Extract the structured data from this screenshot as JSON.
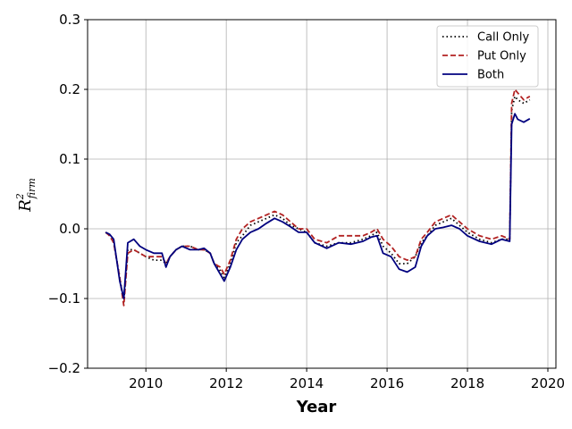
{
  "chart_data": {
    "type": "line",
    "xlabel": "Year",
    "ylabel": {
      "base": "R",
      "sup": "2",
      "sub": "firm"
    },
    "xlim": [
      2008.55,
      2020.2
    ],
    "ylim": [
      -0.2,
      0.3
    ],
    "xticks": [
      2010,
      2012,
      2014,
      2016,
      2018,
      2020
    ],
    "yticks": [
      -0.2,
      -0.1,
      0.0,
      0.1,
      0.2,
      0.3
    ],
    "ytick_labels": [
      "−0.2",
      "−0.1",
      "0.0",
      "0.1",
      "0.2",
      "0.3"
    ],
    "grid": true,
    "legend_position": "top-right",
    "series": [
      {
        "name": "Call Only",
        "color": "#000000",
        "style": "dotted",
        "x": [
          2009.0,
          2009.1,
          2009.2,
          2009.35,
          2009.45,
          2009.55,
          2009.7,
          2009.85,
          2010.0,
          2010.2,
          2010.4,
          2010.5,
          2010.6,
          2010.75,
          2010.9,
          2011.1,
          2011.3,
          2011.45,
          2011.6,
          2011.7,
          2011.85,
          2011.95,
          2012.1,
          2012.25,
          2012.4,
          2012.6,
          2012.8,
          2013.0,
          2013.2,
          2013.4,
          2013.6,
          2013.8,
          2014.0,
          2014.2,
          2014.5,
          2014.8,
          2015.1,
          2015.4,
          2015.6,
          2015.75,
          2015.9,
          2016.1,
          2016.3,
          2016.5,
          2016.7,
          2016.85,
          2017.0,
          2017.2,
          2017.4,
          2017.6,
          2017.8,
          2018.0,
          2018.3,
          2018.6,
          2018.85,
          2019.05,
          2019.1,
          2019.18,
          2019.25,
          2019.4,
          2019.55
        ],
        "y": [
          -0.005,
          -0.01,
          -0.02,
          -0.07,
          -0.105,
          -0.03,
          -0.03,
          -0.035,
          -0.04,
          -0.045,
          -0.045,
          -0.05,
          -0.04,
          -0.03,
          -0.025,
          -0.025,
          -0.03,
          -0.03,
          -0.035,
          -0.05,
          -0.06,
          -0.07,
          -0.05,
          -0.02,
          -0.01,
          0.005,
          0.01,
          0.015,
          0.02,
          0.015,
          0.005,
          0.0,
          -0.005,
          -0.02,
          -0.025,
          -0.02,
          -0.02,
          -0.015,
          -0.01,
          -0.005,
          -0.025,
          -0.035,
          -0.05,
          -0.05,
          -0.04,
          -0.02,
          -0.01,
          0.005,
          0.01,
          0.015,
          0.005,
          -0.005,
          -0.015,
          -0.02,
          -0.015,
          -0.015,
          0.17,
          0.19,
          0.185,
          0.18,
          0.185
        ]
      },
      {
        "name": "Put Only",
        "color": "#b22222",
        "style": "dashed",
        "x": [
          2009.0,
          2009.1,
          2009.2,
          2009.35,
          2009.45,
          2009.55,
          2009.7,
          2009.85,
          2010.0,
          2010.2,
          2010.4,
          2010.5,
          2010.6,
          2010.75,
          2010.9,
          2011.1,
          2011.3,
          2011.45,
          2011.6,
          2011.7,
          2011.85,
          2011.95,
          2012.1,
          2012.25,
          2012.4,
          2012.6,
          2012.8,
          2013.0,
          2013.2,
          2013.4,
          2013.6,
          2013.8,
          2014.0,
          2014.2,
          2014.5,
          2014.8,
          2015.1,
          2015.4,
          2015.6,
          2015.75,
          2015.9,
          2016.1,
          2016.3,
          2016.5,
          2016.7,
          2016.85,
          2017.0,
          2017.2,
          2017.4,
          2017.6,
          2017.8,
          2018.0,
          2018.3,
          2018.6,
          2018.85,
          2019.05,
          2019.1,
          2019.18,
          2019.25,
          2019.4,
          2019.55
        ],
        "y": [
          -0.005,
          -0.01,
          -0.02,
          -0.07,
          -0.11,
          -0.035,
          -0.03,
          -0.035,
          -0.04,
          -0.04,
          -0.04,
          -0.05,
          -0.04,
          -0.03,
          -0.025,
          -0.025,
          -0.03,
          -0.03,
          -0.035,
          -0.05,
          -0.055,
          -0.065,
          -0.045,
          -0.015,
          0.0,
          0.01,
          0.015,
          0.02,
          0.025,
          0.02,
          0.01,
          0.0,
          0.0,
          -0.015,
          -0.02,
          -0.01,
          -0.01,
          -0.01,
          -0.005,
          0.0,
          -0.015,
          -0.025,
          -0.04,
          -0.045,
          -0.04,
          -0.015,
          -0.005,
          0.01,
          0.015,
          0.02,
          0.01,
          0.0,
          -0.01,
          -0.015,
          -0.01,
          -0.015,
          0.18,
          0.2,
          0.195,
          0.185,
          0.19
        ]
      },
      {
        "name": "Both",
        "color": "#00007f",
        "style": "solid",
        "x": [
          2009.0,
          2009.1,
          2009.2,
          2009.35,
          2009.45,
          2009.55,
          2009.7,
          2009.85,
          2010.0,
          2010.2,
          2010.4,
          2010.5,
          2010.6,
          2010.75,
          2010.9,
          2011.1,
          2011.3,
          2011.45,
          2011.6,
          2011.7,
          2011.85,
          2011.95,
          2012.1,
          2012.25,
          2012.4,
          2012.6,
          2012.8,
          2013.0,
          2013.2,
          2013.4,
          2013.6,
          2013.8,
          2014.0,
          2014.2,
          2014.5,
          2014.8,
          2015.1,
          2015.4,
          2015.6,
          2015.75,
          2015.9,
          2016.1,
          2016.3,
          2016.5,
          2016.7,
          2016.85,
          2017.0,
          2017.2,
          2017.4,
          2017.6,
          2017.8,
          2018.0,
          2018.3,
          2018.6,
          2018.85,
          2019.05,
          2019.1,
          2019.18,
          2019.25,
          2019.4,
          2019.55
        ],
        "y": [
          -0.005,
          -0.008,
          -0.015,
          -0.075,
          -0.1,
          -0.02,
          -0.015,
          -0.025,
          -0.03,
          -0.035,
          -0.035,
          -0.055,
          -0.04,
          -0.03,
          -0.025,
          -0.03,
          -0.03,
          -0.028,
          -0.035,
          -0.05,
          -0.065,
          -0.075,
          -0.055,
          -0.03,
          -0.015,
          -0.005,
          0.0,
          0.008,
          0.015,
          0.01,
          0.003,
          -0.005,
          -0.005,
          -0.02,
          -0.028,
          -0.02,
          -0.022,
          -0.018,
          -0.012,
          -0.01,
          -0.035,
          -0.04,
          -0.058,
          -0.062,
          -0.055,
          -0.025,
          -0.01,
          0.0,
          0.002,
          0.005,
          0.0,
          -0.01,
          -0.018,
          -0.022,
          -0.015,
          -0.018,
          0.15,
          0.165,
          0.157,
          0.153,
          0.158
        ]
      }
    ]
  }
}
